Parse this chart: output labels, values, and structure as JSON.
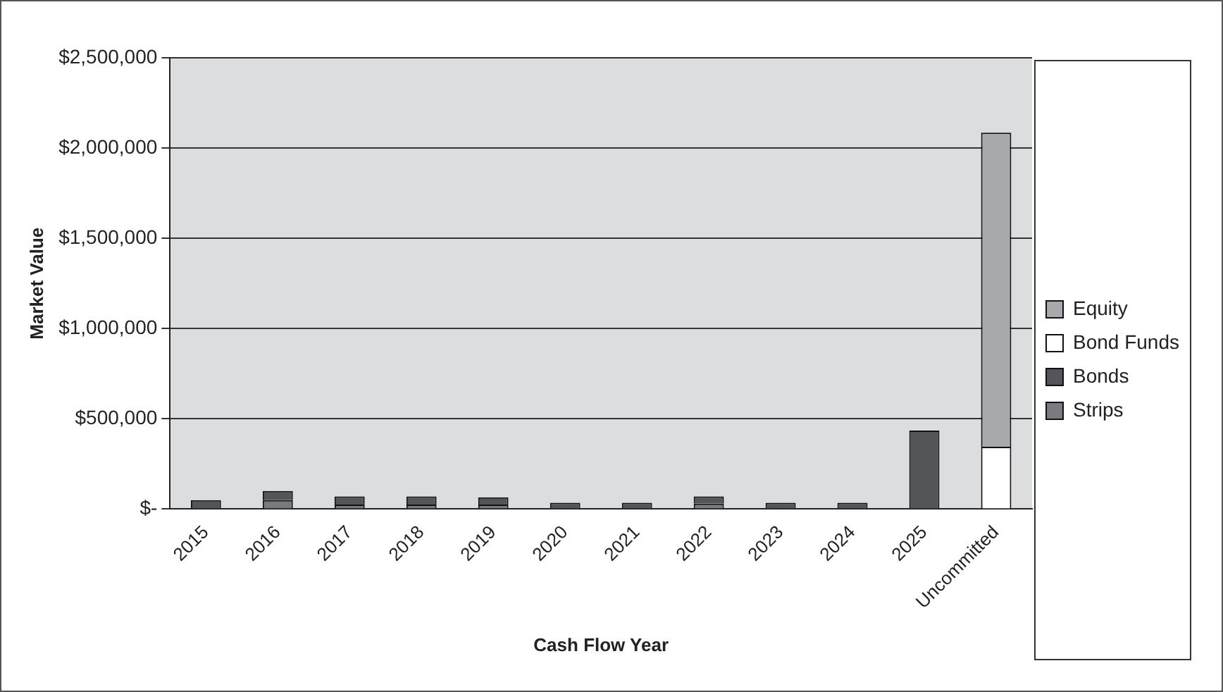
{
  "chart_data": {
    "type": "bar",
    "stacked": true,
    "xlabel": "Cash Flow Year",
    "ylabel": "Market Value",
    "categories": [
      "2015",
      "2016",
      "2017",
      "2018",
      "2019",
      "2020",
      "2021",
      "2022",
      "2023",
      "2024",
      "2025",
      "Uncommitted"
    ],
    "series": [
      {
        "name": "Strips",
        "color": "#7a7b7e",
        "values": [
          0,
          50000,
          25000,
          25000,
          25000,
          0,
          0,
          30000,
          0,
          0,
          0,
          0
        ]
      },
      {
        "name": "Bonds",
        "color": "#545558",
        "values": [
          50000,
          50000,
          45000,
          45000,
          40000,
          35000,
          35000,
          40000,
          35000,
          35000,
          435000,
          0
        ]
      },
      {
        "name": "Bond Funds",
        "color": "#ffffff",
        "values": [
          0,
          0,
          0,
          0,
          0,
          0,
          0,
          0,
          0,
          0,
          0,
          345000
        ]
      },
      {
        "name": "Equity",
        "color": "#a8a9ad",
        "values": [
          0,
          0,
          0,
          0,
          0,
          0,
          0,
          0,
          0,
          0,
          0,
          1740000
        ]
      }
    ],
    "ylim": [
      0,
      2500000
    ],
    "yticks": [
      {
        "value": 0,
        "label": "$-"
      },
      {
        "value": 500000,
        "label": "$500,000"
      },
      {
        "value": 1000000,
        "label": "$1,000,000"
      },
      {
        "value": 1500000,
        "label": "$1,500,000"
      },
      {
        "value": 2000000,
        "label": "$2,000,000"
      },
      {
        "value": 2500000,
        "label": "$2,500,000"
      }
    ],
    "grid": "y",
    "legend": "right"
  }
}
